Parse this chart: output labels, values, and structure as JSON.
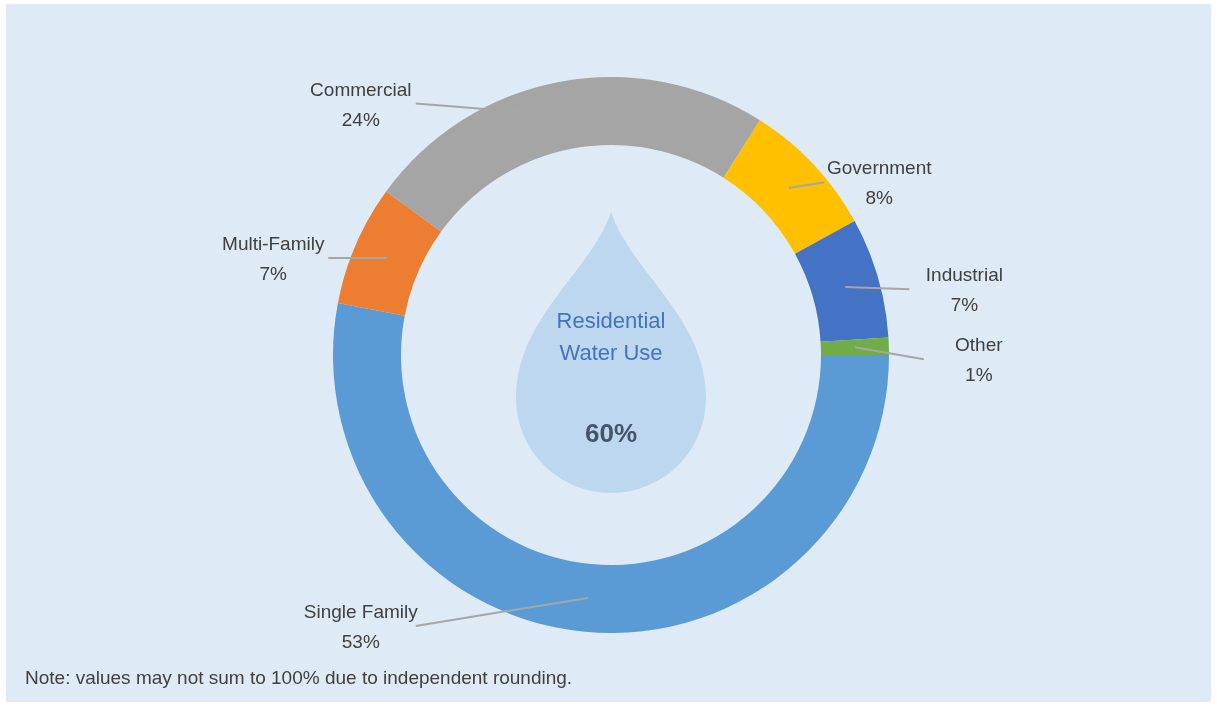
{
  "chart_data": {
    "type": "donut",
    "categories": [
      "Single Family",
      "Multi-Family",
      "Commercial",
      "Government",
      "Industrial",
      "Other"
    ],
    "values": [
      53,
      7,
      24,
      8,
      7,
      1
    ],
    "colors": [
      "#5b9bd5",
      "#ed7d31",
      "#a5a5a5",
      "#ffc000",
      "#4472c4",
      "#70ad47"
    ],
    "value_labels": [
      "53%",
      "7%",
      "24%",
      "8%",
      "7%",
      "1%"
    ],
    "annotations": [
      "Residential Water Use",
      "60%",
      "Note: values may not sum to 100% due to independent rounding."
    ]
  }
}
